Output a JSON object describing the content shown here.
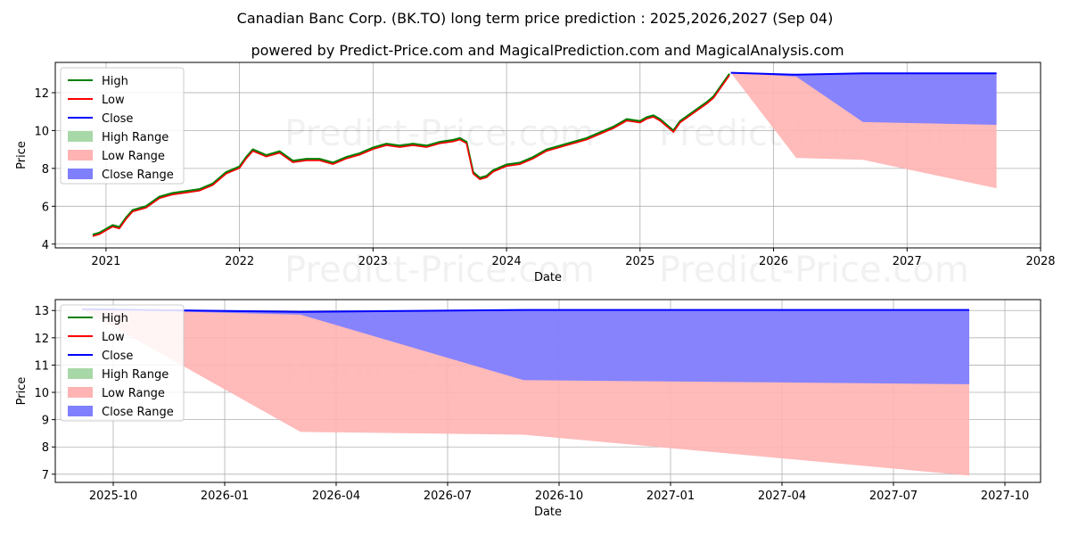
{
  "title": "Canadian Banc Corp. (BK.TO) long term price prediction : 2025,2026,2027 (Sep 04)",
  "subtitle": "powered by Predict-Price.com and MagicalPrediction.com and MagicalAnalysis.com",
  "watermark": "Predict-Price.com",
  "colors": {
    "high": "#008000",
    "low": "#ff0000",
    "close": "#0000ff",
    "high_range": "#a8d8a8",
    "low_range": "#ffb3b3",
    "close_range": "#8080ff"
  },
  "chart_data": [
    {
      "type": "line",
      "name": "history-and-forecast",
      "xlabel": "Date",
      "ylabel": "Price",
      "xlim": [
        2020.62,
        2028.0
      ],
      "ylim": [
        3.8,
        13.6
      ],
      "x_ticks": [
        2021,
        2022,
        2023,
        2024,
        2025,
        2026,
        2027,
        2028
      ],
      "x_tick_labels": [
        "2021",
        "2022",
        "2023",
        "2024",
        "2025",
        "2026",
        "2027",
        "2028"
      ],
      "y_ticks": [
        4,
        6,
        8,
        10,
        12
      ],
      "y_tick_labels": [
        "4",
        "6",
        "8",
        "10",
        "12"
      ],
      "grid": true,
      "legend_position": "top-left",
      "legend": [
        "High",
        "Low",
        "Close",
        "High Range",
        "Low Range",
        "Close Range"
      ],
      "history": {
        "x": [
          2020.9,
          2020.95,
          2021.0,
          2021.05,
          2021.1,
          2021.15,
          2021.2,
          2021.3,
          2021.4,
          2021.5,
          2021.6,
          2021.7,
          2021.8,
          2021.9,
          2022.0,
          2022.05,
          2022.1,
          2022.2,
          2022.3,
          2022.4,
          2022.5,
          2022.6,
          2022.7,
          2022.8,
          2022.9,
          2023.0,
          2023.1,
          2023.2,
          2023.3,
          2023.4,
          2023.5,
          2023.6,
          2023.65,
          2023.7,
          2023.75,
          2023.8,
          2023.85,
          2023.9,
          2024.0,
          2024.1,
          2024.2,
          2024.3,
          2024.4,
          2024.5,
          2024.6,
          2024.7,
          2024.8,
          2024.9,
          2025.0,
          2025.05,
          2025.1,
          2025.15,
          2025.2,
          2025.25,
          2025.3,
          2025.4,
          2025.5,
          2025.55,
          2025.6,
          2025.67
        ],
        "close": [
          4.5,
          4.6,
          4.8,
          5.0,
          4.9,
          5.4,
          5.8,
          6.0,
          6.5,
          6.7,
          6.8,
          6.9,
          7.2,
          7.8,
          8.1,
          8.6,
          9.0,
          8.7,
          8.9,
          8.4,
          8.5,
          8.5,
          8.3,
          8.6,
          8.8,
          9.1,
          9.3,
          9.2,
          9.3,
          9.2,
          9.4,
          9.5,
          9.6,
          9.4,
          7.8,
          7.5,
          7.6,
          7.9,
          8.2,
          8.3,
          8.6,
          9.0,
          9.2,
          9.4,
          9.6,
          9.9,
          10.2,
          10.6,
          10.5,
          10.7,
          10.8,
          10.6,
          10.3,
          10.0,
          10.5,
          11.0,
          11.5,
          11.8,
          12.3,
          13.0
        ]
      },
      "forecast": {
        "x": [
          2025.68,
          2026.17,
          2026.67,
          2027.67
        ],
        "close": [
          13.05,
          12.95,
          13.02,
          13.02
        ],
        "close_range_low": [
          13.05,
          12.85,
          10.45,
          10.3
        ],
        "low_range_low": [
          13.05,
          8.55,
          8.45,
          6.95
        ]
      }
    },
    {
      "type": "line",
      "name": "forecast-detail",
      "xlabel": "Date",
      "ylabel": "Price",
      "xlim": [
        2025.62,
        2027.83
      ],
      "ylim": [
        6.7,
        13.4
      ],
      "x_ticks": [
        2025.75,
        2026.0,
        2026.25,
        2026.5,
        2026.75,
        2027.0,
        2027.25,
        2027.5,
        2027.75
      ],
      "x_tick_labels": [
        "2025-10",
        "2026-01",
        "2026-04",
        "2026-07",
        "2026-10",
        "2027-01",
        "2027-04",
        "2027-07",
        "2027-10"
      ],
      "y_ticks": [
        7,
        8,
        9,
        10,
        11,
        12,
        13
      ],
      "y_tick_labels": [
        "7",
        "8",
        "9",
        "10",
        "11",
        "12",
        "13"
      ],
      "grid": true,
      "legend_position": "top-left",
      "legend": [
        "High",
        "Low",
        "Close",
        "High Range",
        "Low Range",
        "Close Range"
      ],
      "forecast": {
        "x": [
          2025.68,
          2026.17,
          2026.67,
          2027.67
        ],
        "close": [
          13.05,
          12.95,
          13.02,
          13.02
        ],
        "close_range_low": [
          13.05,
          12.85,
          10.45,
          10.3
        ],
        "low_range_low": [
          13.05,
          8.55,
          8.45,
          6.95
        ]
      }
    }
  ]
}
